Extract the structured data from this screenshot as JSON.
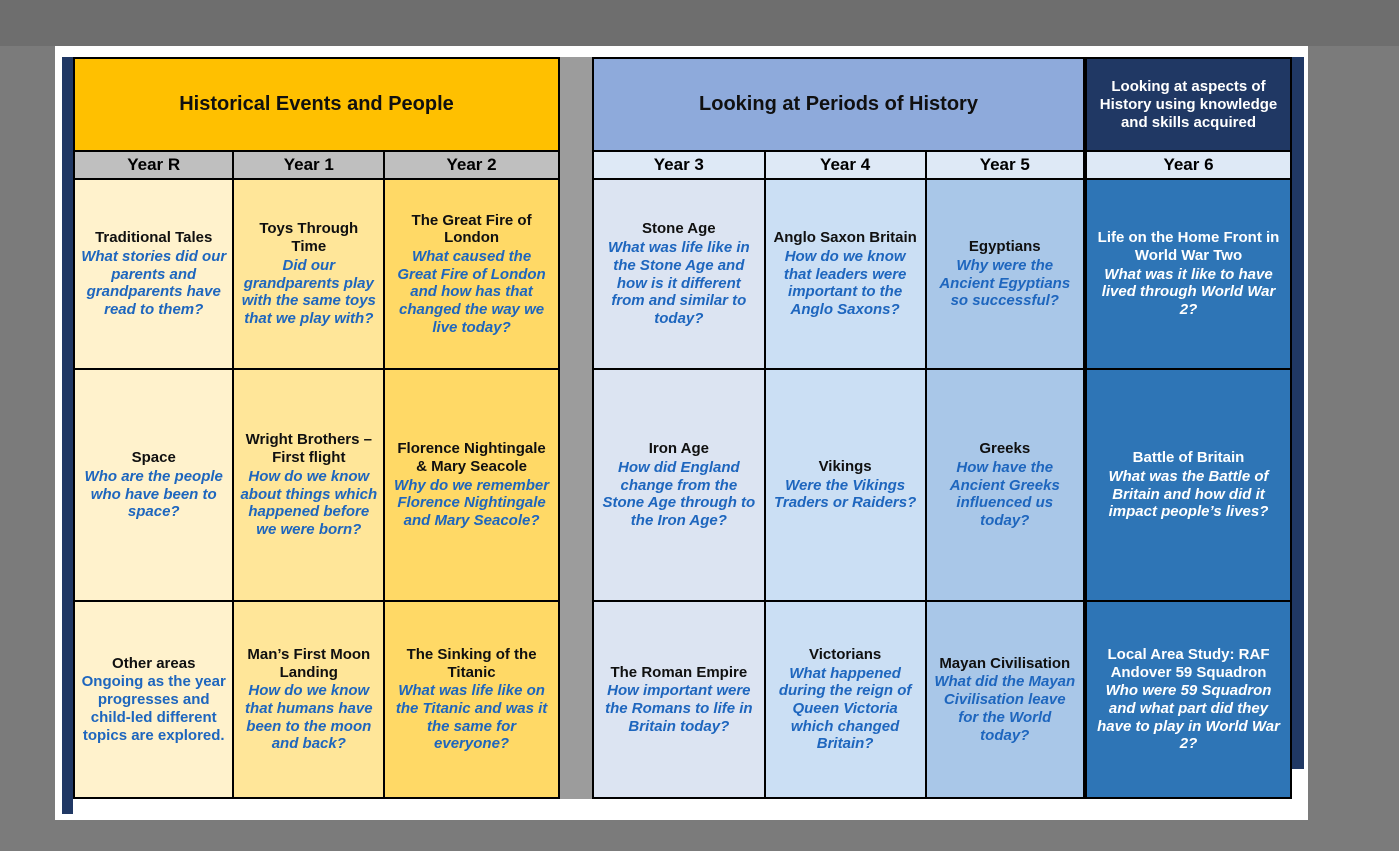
{
  "colors": {
    "section1_header": "#ffc000",
    "section2_header": "#8eaadb",
    "section3_header": "#203864",
    "question_blue": "#1e66be",
    "year6_cell": "#2e75b6"
  },
  "sections": [
    {
      "title": "Historical Events and People",
      "columns": [
        {
          "year": "Year R",
          "cells": [
            {
              "title": "Traditional Tales",
              "question": "What stories did our parents and grandparents have read to them?"
            },
            {
              "title": "Space",
              "question": "Who are the people who have been to space?"
            },
            {
              "title": "Other areas",
              "question": "Ongoing as the year progresses and child-led different topics are explored."
            }
          ]
        },
        {
          "year": "Year 1",
          "cells": [
            {
              "title": "Toys Through Time",
              "question": "Did our grandparents play with the same toys that we play with?"
            },
            {
              "title": "Wright Brothers – First flight",
              "question": "How do we know about things which happened before we were born?"
            },
            {
              "title": "Man’s First Moon Landing",
              "question": "How do we know that humans have been to the moon and back?"
            }
          ]
        },
        {
          "year": "Year 2",
          "cells": [
            {
              "title": "The Great Fire of London",
              "question": "What caused the Great Fire of London and how has that changed the way we live today?"
            },
            {
              "title": "Florence Nightingale & Mary Seacole",
              "question": "Why do we remember Florence Nightingale and Mary Seacole?"
            },
            {
              "title": "The Sinking of the Titanic",
              "question": "What was life like on the Titanic and was it the same for everyone?"
            }
          ]
        }
      ]
    },
    {
      "title": "Looking at Periods of History",
      "columns": [
        {
          "year": "Year 3",
          "cells": [
            {
              "title": "Stone Age",
              "question": "What was life like in the Stone Age and how is it different from and similar to today?"
            },
            {
              "title": "Iron Age",
              "question": "How did England change from the Stone Age through to the Iron Age?"
            },
            {
              "title": "The Roman Empire",
              "question": "How important were the Romans to life in Britain today?"
            }
          ]
        },
        {
          "year": "Year 4",
          "cells": [
            {
              "title": "Anglo Saxon Britain",
              "question": "How do we know that leaders were important to the Anglo Saxons?"
            },
            {
              "title": "Vikings",
              "question": "Were the Vikings Traders or Raiders?"
            },
            {
              "title": "Victorians",
              "question": "What happened during the reign of Queen Victoria which changed Britain?"
            }
          ]
        },
        {
          "year": "Year 5",
          "cells": [
            {
              "title": "Egyptians",
              "question": "Why were the Ancient Egyptians so successful?"
            },
            {
              "title": "Greeks",
              "question": "How have the Ancient Greeks influenced us today?"
            },
            {
              "title": "Mayan Civilisation",
              "question": "What did the Mayan Civilisation leave for the World today?"
            }
          ]
        }
      ]
    },
    {
      "title": "Looking at aspects of History using knowledge and skills acquired",
      "columns": [
        {
          "year": "Year 6",
          "cells": [
            {
              "title": "Life on the Home Front in World War Two",
              "question": "What was it like to have lived through World War 2?"
            },
            {
              "title": "Battle of Britain",
              "question": "What was the Battle of Britain and how did it impact people’s lives?"
            },
            {
              "title": "Local Area Study: RAF Andover  59 Squadron",
              "question": "Who were 59 Squadron and what part did they have to play in World War 2?"
            }
          ]
        }
      ]
    }
  ]
}
